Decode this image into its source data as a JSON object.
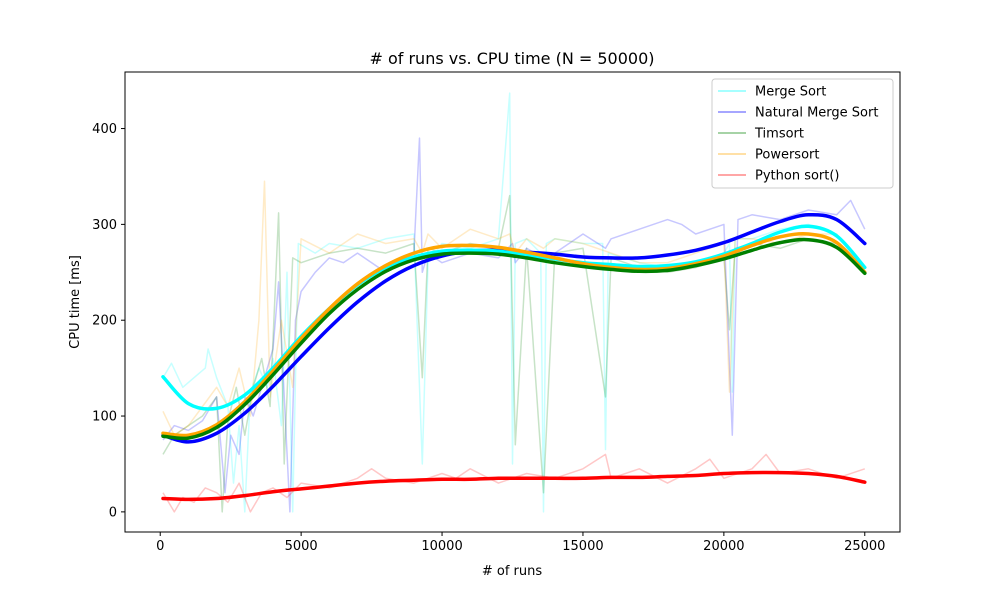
{
  "chart_data": {
    "type": "line",
    "title": "# of runs vs. CPU time (N = 50000)",
    "xlabel": "# of runs",
    "ylabel": "CPU time [ms]",
    "xlim": [
      -1250,
      26250
    ],
    "ylim": [
      -21,
      459
    ],
    "xticks": [
      0,
      5000,
      10000,
      15000,
      20000,
      25000
    ],
    "yticks": [
      0,
      100,
      200,
      300,
      400
    ],
    "grid": false,
    "legend_position": "top-right",
    "series": [
      {
        "name": "Merge Sort",
        "color": "#00ffff",
        "raw_x": [
          100,
          400,
          800,
          1200,
          1600,
          1700,
          2000,
          2400,
          2600,
          2800,
          3000,
          3200,
          3500,
          3800,
          4000,
          4300,
          4500,
          4700,
          4900,
          5500,
          6000,
          7000,
          8000,
          9000,
          9300,
          9500,
          10000,
          11000,
          12000,
          12400,
          12500,
          12600,
          13000,
          13500,
          13600,
          13700,
          14000,
          15000,
          15700,
          15800,
          15900,
          17000,
          18000,
          19000,
          20000,
          20200,
          20300,
          20400,
          21000,
          22000,
          23000,
          24000,
          25000
        ],
        "raw_y": [
          140,
          155,
          130,
          140,
          150,
          170,
          140,
          110,
          30,
          90,
          0,
          125,
          150,
          130,
          160,
          90,
          250,
          0,
          280,
          270,
          280,
          275,
          285,
          290,
          50,
          260,
          280,
          275,
          285,
          437,
          50,
          280,
          285,
          270,
          0,
          280,
          285,
          280,
          280,
          65,
          270,
          260,
          255,
          260,
          270,
          280,
          125,
          285,
          285,
          295,
          300,
          290,
          255
        ],
        "trend": [
          [
            100,
            141
          ],
          [
            1000,
            113
          ],
          [
            2000,
            108
          ],
          [
            3000,
            122
          ],
          [
            4000,
            150
          ],
          [
            5000,
            183
          ],
          [
            6000,
            212
          ],
          [
            7000,
            237
          ],
          [
            8000,
            255
          ],
          [
            9000,
            266
          ],
          [
            10000,
            272
          ],
          [
            11000,
            273
          ],
          [
            12000,
            272
          ],
          [
            13000,
            268
          ],
          [
            14000,
            264
          ],
          [
            15000,
            260
          ],
          [
            16000,
            258
          ],
          [
            17000,
            256
          ],
          [
            18000,
            257
          ],
          [
            19000,
            261
          ],
          [
            20000,
            269
          ],
          [
            21000,
            280
          ],
          [
            22000,
            292
          ],
          [
            23000,
            298
          ],
          [
            24000,
            288
          ],
          [
            25000,
            255
          ]
        ]
      },
      {
        "name": "Natural Merge Sort",
        "color": "#0000ff",
        "raw_x": [
          100,
          500,
          1000,
          1500,
          2000,
          2300,
          2500,
          2800,
          3000,
          3300,
          3600,
          4000,
          4200,
          4600,
          4800,
          5000,
          5500,
          6000,
          6500,
          7000,
          8000,
          9000,
          9200,
          9300,
          9500,
          10000,
          11000,
          12000,
          12500,
          12600,
          13000,
          13600,
          14000,
          15000,
          15800,
          16000,
          17000,
          18000,
          18500,
          19000,
          20000,
          20300,
          20500,
          21000,
          22000,
          23000,
          24000,
          24500,
          25000
        ],
        "raw_y": [
          75,
          90,
          85,
          95,
          120,
          20,
          80,
          60,
          120,
          100,
          130,
          170,
          240,
          0,
          200,
          230,
          250,
          265,
          260,
          270,
          250,
          270,
          390,
          250,
          270,
          260,
          270,
          265,
          280,
          260,
          275,
          265,
          270,
          290,
          275,
          285,
          295,
          305,
          300,
          290,
          300,
          80,
          305,
          310,
          305,
          315,
          310,
          325,
          295
        ],
        "trend": [
          [
            100,
            80
          ],
          [
            1000,
            73
          ],
          [
            2000,
            82
          ],
          [
            3000,
            103
          ],
          [
            4000,
            131
          ],
          [
            5000,
            162
          ],
          [
            6000,
            192
          ],
          [
            7000,
            219
          ],
          [
            8000,
            241
          ],
          [
            9000,
            257
          ],
          [
            10000,
            267
          ],
          [
            11000,
            272
          ],
          [
            12000,
            273
          ],
          [
            13000,
            271
          ],
          [
            14000,
            269
          ],
          [
            15000,
            266
          ],
          [
            16000,
            265
          ],
          [
            17000,
            265
          ],
          [
            18000,
            268
          ],
          [
            19000,
            273
          ],
          [
            20000,
            281
          ],
          [
            21000,
            292
          ],
          [
            22000,
            303
          ],
          [
            23000,
            310
          ],
          [
            24000,
            305
          ],
          [
            25000,
            280
          ]
        ]
      },
      {
        "name": "Timsort",
        "color": "#008000",
        "raw_x": [
          100,
          500,
          1000,
          1500,
          2000,
          2200,
          2400,
          2700,
          3000,
          3300,
          3600,
          3900,
          4200,
          4400,
          4700,
          5000,
          6000,
          7000,
          8000,
          9000,
          9300,
          9500,
          10000,
          11000,
          12000,
          12400,
          12600,
          13000,
          13600,
          14000,
          15000,
          15800,
          16000,
          17000,
          18000,
          19000,
          20000,
          20200,
          20400,
          21000,
          22000,
          23000,
          24000,
          25000
        ],
        "raw_y": [
          60,
          80,
          90,
          100,
          120,
          0,
          95,
          130,
          80,
          130,
          160,
          110,
          312,
          50,
          265,
          260,
          270,
          275,
          270,
          280,
          140,
          275,
          270,
          280,
          275,
          330,
          70,
          275,
          20,
          270,
          275,
          120,
          265,
          255,
          250,
          255,
          265,
          190,
          275,
          280,
          275,
          285,
          280,
          255
        ],
        "trend": [
          [
            100,
            79
          ],
          [
            1000,
            77
          ],
          [
            2000,
            88
          ],
          [
            3000,
            112
          ],
          [
            4000,
            143
          ],
          [
            5000,
            176
          ],
          [
            6000,
            207
          ],
          [
            7000,
            232
          ],
          [
            8000,
            251
          ],
          [
            9000,
            263
          ],
          [
            10000,
            269
          ],
          [
            11000,
            270
          ],
          [
            12000,
            269
          ],
          [
            13000,
            265
          ],
          [
            14000,
            260
          ],
          [
            15000,
            256
          ],
          [
            16000,
            253
          ],
          [
            17000,
            251
          ],
          [
            18000,
            252
          ],
          [
            19000,
            257
          ],
          [
            20000,
            264
          ],
          [
            21000,
            273
          ],
          [
            22000,
            281
          ],
          [
            23000,
            284
          ],
          [
            24000,
            276
          ],
          [
            25000,
            249
          ]
        ]
      },
      {
        "name": "Powersort",
        "color": "#ffa500",
        "raw_x": [
          100,
          500,
          1000,
          1500,
          2000,
          2400,
          2800,
          3200,
          3500,
          3700,
          3900,
          4300,
          4700,
          5000,
          6000,
          7000,
          8000,
          9000,
          9300,
          9500,
          10000,
          11000,
          12000,
          12400,
          12600,
          13000,
          13600,
          14000,
          15000,
          16000,
          17000,
          18000,
          19000,
          20000,
          20200,
          20400,
          21000,
          22000,
          23000,
          24000,
          25000
        ],
        "raw_y": [
          105,
          80,
          90,
          110,
          130,
          110,
          150,
          100,
          200,
          345,
          120,
          200,
          130,
          285,
          270,
          290,
          280,
          285,
          270,
          290,
          275,
          295,
          285,
          290,
          270,
          285,
          275,
          285,
          280,
          270,
          260,
          260,
          270,
          280,
          125,
          285,
          285,
          280,
          290,
          290,
          250
        ],
        "trend": [
          [
            100,
            82
          ],
          [
            1000,
            80
          ],
          [
            2000,
            91
          ],
          [
            3000,
            115
          ],
          [
            4000,
            147
          ],
          [
            5000,
            181
          ],
          [
            6000,
            212
          ],
          [
            7000,
            238
          ],
          [
            8000,
            257
          ],
          [
            9000,
            270
          ],
          [
            10000,
            277
          ],
          [
            11000,
            278
          ],
          [
            12000,
            276
          ],
          [
            13000,
            271
          ],
          [
            14000,
            265
          ],
          [
            15000,
            259
          ],
          [
            16000,
            255
          ],
          [
            17000,
            253
          ],
          [
            18000,
            254
          ],
          [
            19000,
            259
          ],
          [
            20000,
            267
          ],
          [
            21000,
            278
          ],
          [
            22000,
            287
          ],
          [
            23000,
            290
          ],
          [
            24000,
            281
          ],
          [
            25000,
            250
          ]
        ]
      },
      {
        "name": "Python sort()",
        "color": "#ff0000",
        "raw_x": [
          100,
          500,
          800,
          1200,
          1600,
          2000,
          2400,
          2800,
          3200,
          3600,
          4000,
          4500,
          5000,
          6000,
          7000,
          7500,
          8000,
          9000,
          10000,
          10500,
          11000,
          12000,
          13000,
          14000,
          15000,
          15800,
          16000,
          17000,
          18000,
          19000,
          19500,
          20000,
          21000,
          21500,
          22000,
          23000,
          24000,
          25000
        ],
        "raw_y": [
          20,
          0,
          15,
          10,
          25,
          20,
          10,
          30,
          0,
          20,
          25,
          15,
          30,
          25,
          35,
          45,
          35,
          30,
          40,
          35,
          45,
          30,
          40,
          35,
          45,
          60,
          35,
          45,
          30,
          45,
          55,
          35,
          45,
          60,
          40,
          45,
          35,
          45
        ],
        "trend": [
          [
            100,
            14
          ],
          [
            1000,
            13
          ],
          [
            2000,
            14
          ],
          [
            3000,
            17
          ],
          [
            4000,
            21
          ],
          [
            5000,
            24
          ],
          [
            6000,
            27
          ],
          [
            7000,
            30
          ],
          [
            8000,
            32
          ],
          [
            9000,
            33
          ],
          [
            10000,
            34
          ],
          [
            11000,
            34
          ],
          [
            12000,
            35
          ],
          [
            13000,
            35
          ],
          [
            14000,
            35
          ],
          [
            15000,
            35
          ],
          [
            16000,
            36
          ],
          [
            17000,
            36
          ],
          [
            18000,
            37
          ],
          [
            19000,
            38
          ],
          [
            20000,
            40
          ],
          [
            21000,
            41
          ],
          [
            22000,
            41
          ],
          [
            23000,
            40
          ],
          [
            24000,
            37
          ],
          [
            25000,
            31
          ]
        ]
      }
    ]
  }
}
